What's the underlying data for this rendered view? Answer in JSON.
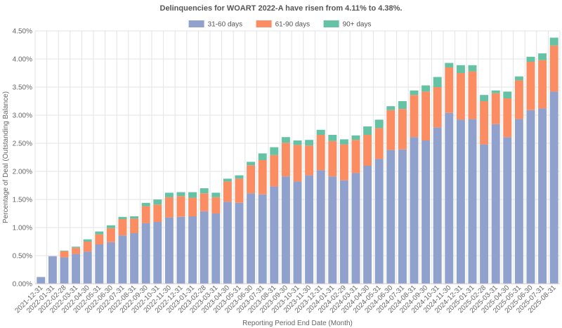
{
  "chart_data": {
    "type": "bar",
    "stacked": true,
    "title": "Delinquencies for WOART 2022-A have risen from 4.11% to 4.38%.",
    "xlabel": "Reporting Period End Date (Month)",
    "ylabel": "Percentage of Deal (Outstanding Balance)",
    "ylim": [
      0,
      4.5
    ],
    "yticks": [
      "0.00%",
      "0.50%",
      "1.00%",
      "1.50%",
      "2.00%",
      "2.50%",
      "3.00%",
      "3.50%",
      "4.00%",
      "4.50%"
    ],
    "ytick_values": [
      0,
      0.5,
      1.0,
      1.5,
      2.0,
      2.5,
      3.0,
      3.5,
      4.0,
      4.5
    ],
    "legend_position": "top-center",
    "grid": true,
    "categories": [
      "2021-12-31",
      "2022-01-31",
      "2022-02-28",
      "2022-03-31",
      "2022-04-30",
      "2022-05-31",
      "2022-06-30",
      "2022-07-31",
      "2022-08-31",
      "2022-09-30",
      "2022-10-31",
      "2022-11-30",
      "2022-12-31",
      "2023-01-31",
      "2023-02-28",
      "2023-03-31",
      "2023-04-30",
      "2023-05-31",
      "2023-06-30",
      "2023-07-31",
      "2023-08-31",
      "2023-09-30",
      "2023-10-31",
      "2023-11-30",
      "2023-12-31",
      "2024-01-31",
      "2024-02-29",
      "2024-03-31",
      "2024-04-30",
      "2024-05-31",
      "2024-06-30",
      "2024-07-31",
      "2024-08-31",
      "2024-09-30",
      "2024-10-31",
      "2024-11-30",
      "2024-12-31",
      "2025-01-31",
      "2025-02-28",
      "2025-03-31",
      "2025-04-30",
      "2025-05-31",
      "2025-06-30",
      "2025-07-31",
      "2025-08-31"
    ],
    "series": [
      {
        "name": "31-60 days",
        "color": "#8fa1cc",
        "values": [
          0.12,
          0.49,
          0.47,
          0.53,
          0.57,
          0.7,
          0.74,
          0.86,
          0.9,
          1.08,
          1.1,
          1.18,
          1.19,
          1.2,
          1.29,
          1.25,
          1.46,
          1.44,
          1.61,
          1.59,
          1.73,
          1.91,
          1.82,
          1.93,
          2.02,
          1.91,
          1.84,
          1.97,
          2.1,
          2.22,
          2.38,
          2.39,
          2.61,
          2.55,
          2.78,
          3.04,
          2.92,
          2.93,
          2.48,
          2.84,
          2.61,
          2.93,
          3.09,
          3.12,
          3.42
        ]
      },
      {
        "name": "61-90 days",
        "color": "#fc8d62",
        "values": [
          0,
          0,
          0.11,
          0.11,
          0.18,
          0.18,
          0.25,
          0.29,
          0.26,
          0.3,
          0.31,
          0.36,
          0.37,
          0.33,
          0.32,
          0.29,
          0.36,
          0.43,
          0.5,
          0.61,
          0.56,
          0.6,
          0.65,
          0.53,
          0.63,
          0.63,
          0.64,
          0.59,
          0.55,
          0.55,
          0.71,
          0.72,
          0.75,
          0.87,
          0.72,
          0.81,
          0.83,
          0.85,
          0.77,
          0.55,
          0.69,
          0.69,
          0.86,
          0.86,
          0.82
        ]
      },
      {
        "name": "90+ days",
        "color": "#66c2a5",
        "values": [
          0,
          0,
          0.01,
          0.02,
          0.04,
          0.05,
          0.05,
          0.04,
          0.04,
          0.06,
          0.09,
          0.08,
          0.07,
          0.1,
          0.09,
          0.08,
          0.05,
          0.06,
          0.06,
          0.12,
          0.14,
          0.1,
          0.08,
          0.1,
          0.09,
          0.11,
          0.09,
          0.08,
          0.15,
          0.15,
          0.07,
          0.14,
          0.08,
          0.11,
          0.18,
          0.08,
          0.14,
          0.11,
          0.11,
          0.05,
          0.12,
          0.07,
          0.09,
          0.12,
          0.14
        ]
      }
    ]
  }
}
